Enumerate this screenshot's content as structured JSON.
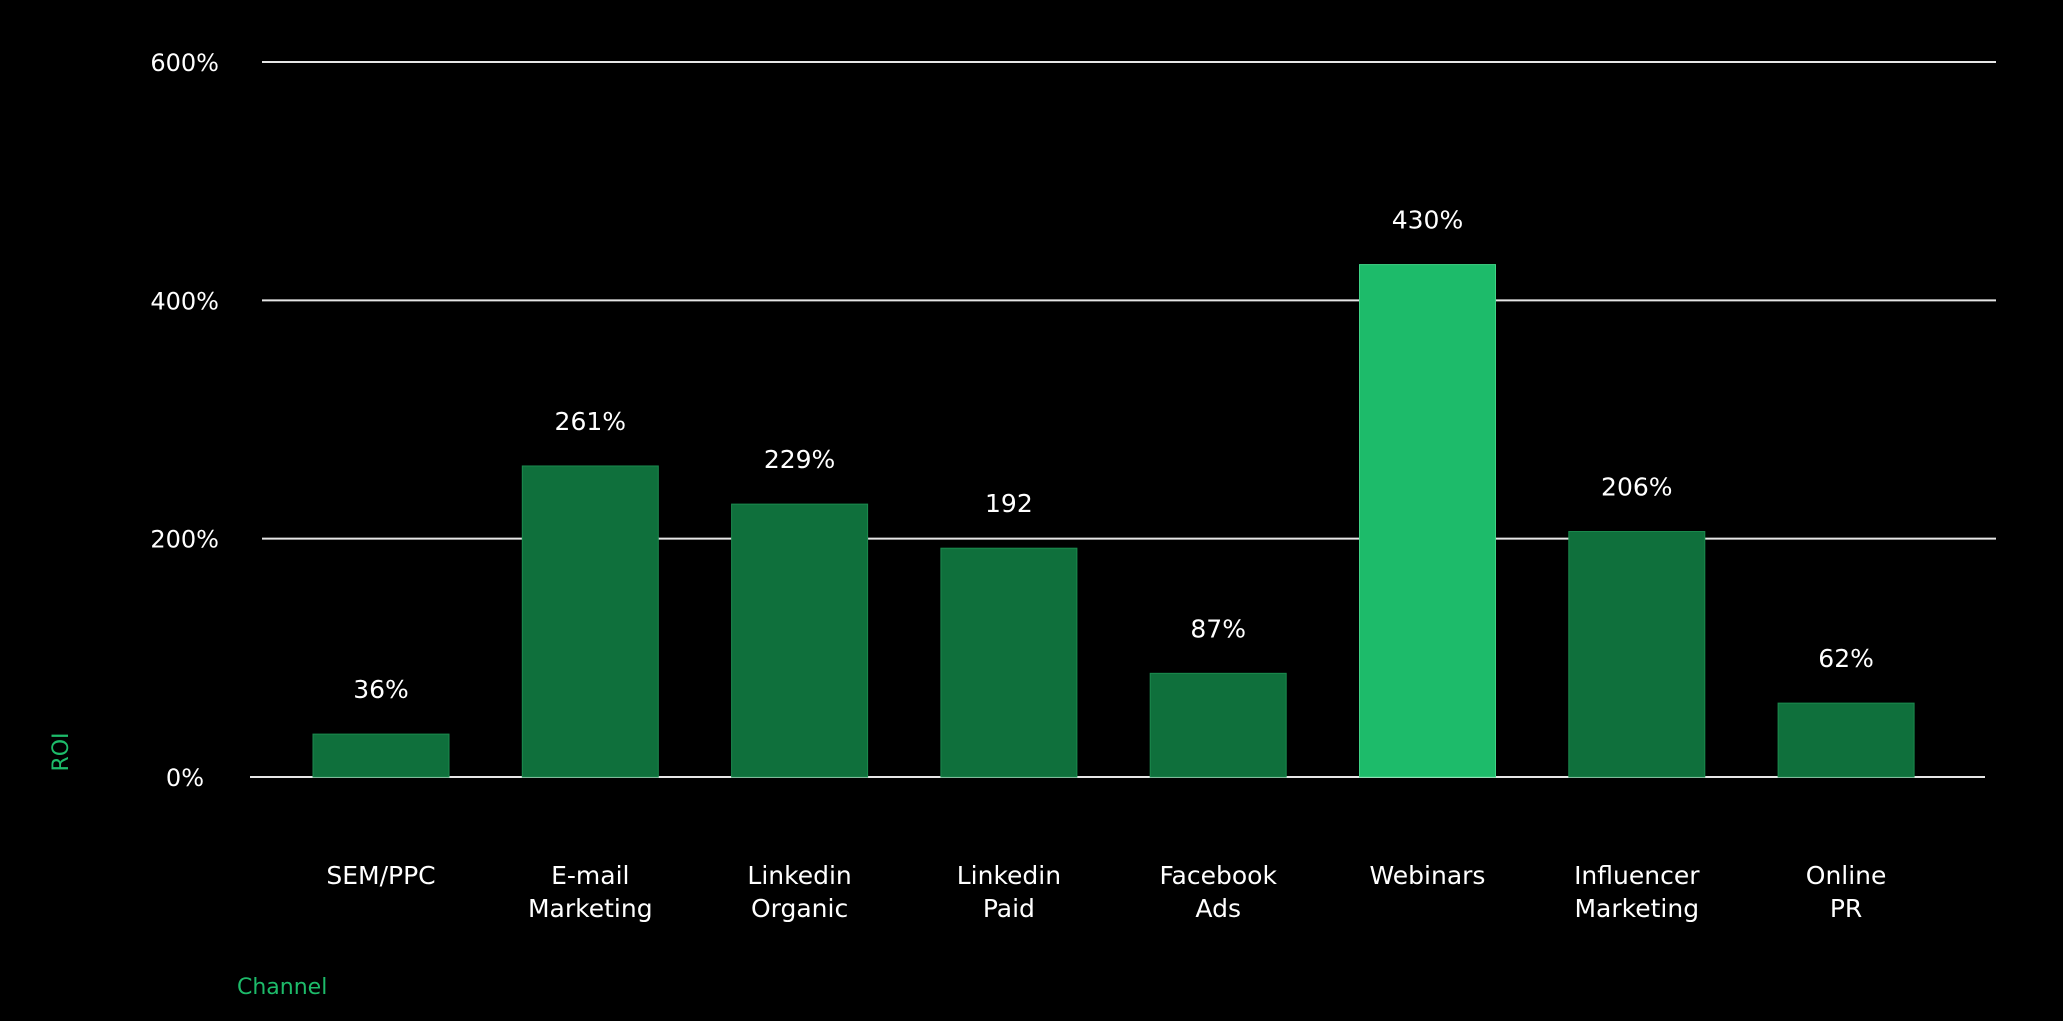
{
  "chart_data": {
    "type": "bar",
    "categories": [
      [
        "SEM/PPC"
      ],
      [
        "E-mail",
        "Marketing"
      ],
      [
        "Linkedin",
        "Organic"
      ],
      [
        "Linkedin",
        "Paid"
      ],
      [
        "Facebook",
        "Ads"
      ],
      [
        "Webinars"
      ],
      [
        "Influencer",
        "Marketing"
      ],
      [
        "Online",
        "PR"
      ]
    ],
    "values": [
      36,
      261,
      229,
      192,
      87,
      430,
      206,
      62
    ],
    "data_labels": [
      "36%",
      "261%",
      "229%",
      "192",
      "87%",
      "430%",
      "206%",
      "62%"
    ],
    "highlight_index": 5,
    "ylim": [
      0,
      600
    ],
    "yticks": [
      0,
      200,
      400,
      600
    ],
    "ytick_labels": [
      "0%",
      "200%",
      "400%",
      "600%"
    ],
    "xlabel": "Channel",
    "ylabel": "ROI",
    "grid": true,
    "colors": {
      "background": "#000000",
      "bar": "#0f703c",
      "bar_highlight": "#1dbb6a",
      "gridline": "#e6e6e6",
      "text": "#ffffff",
      "axis_title": "#1dbb6a"
    }
  }
}
